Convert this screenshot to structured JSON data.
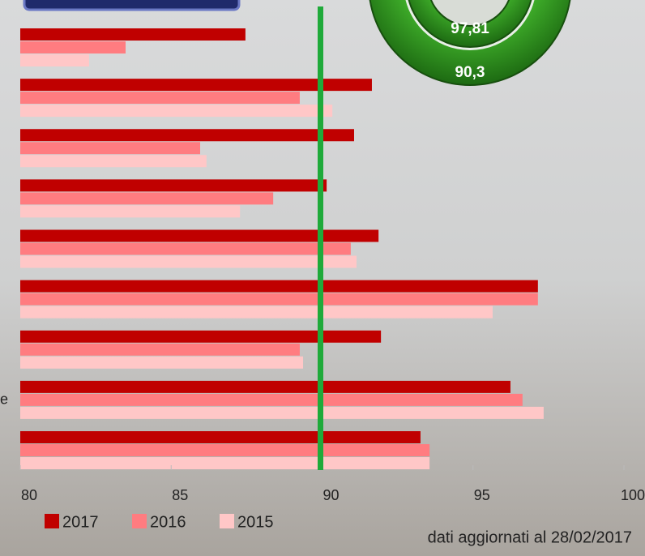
{
  "chart_data": {
    "type": "hbar",
    "categories": [
      null,
      null,
      null,
      null,
      null,
      null,
      null,
      "e",
      null
    ],
    "series": [
      {
        "name": "2017",
        "color": "#c00000",
        "values": [
          87.46,
          91.65,
          91.06,
          90.15,
          91.87,
          97.15,
          91.95,
          96.24,
          93.26
        ]
      },
      {
        "name": "2016",
        "color": "#ff7c80",
        "values": [
          83.49,
          89.26,
          85.96,
          88.38,
          90.95,
          97.15,
          89.26,
          96.64,
          93.56
        ]
      },
      {
        "name": "2015",
        "color": "#ffc7c7",
        "values": [
          82.28,
          90.34,
          86.17,
          87.28,
          91.14,
          95.65,
          89.37,
          97.34,
          93.56
        ]
      }
    ],
    "xlim": [
      80,
      100
    ],
    "xticks": [
      80,
      85,
      90,
      95,
      100
    ],
    "reference_line": 90,
    "reference_color": "#1faa3a",
    "annotations": [
      "97,81",
      "90,3"
    ],
    "note": "dati aggiornati al 28/02/2017",
    "legend": "bottom"
  }
}
